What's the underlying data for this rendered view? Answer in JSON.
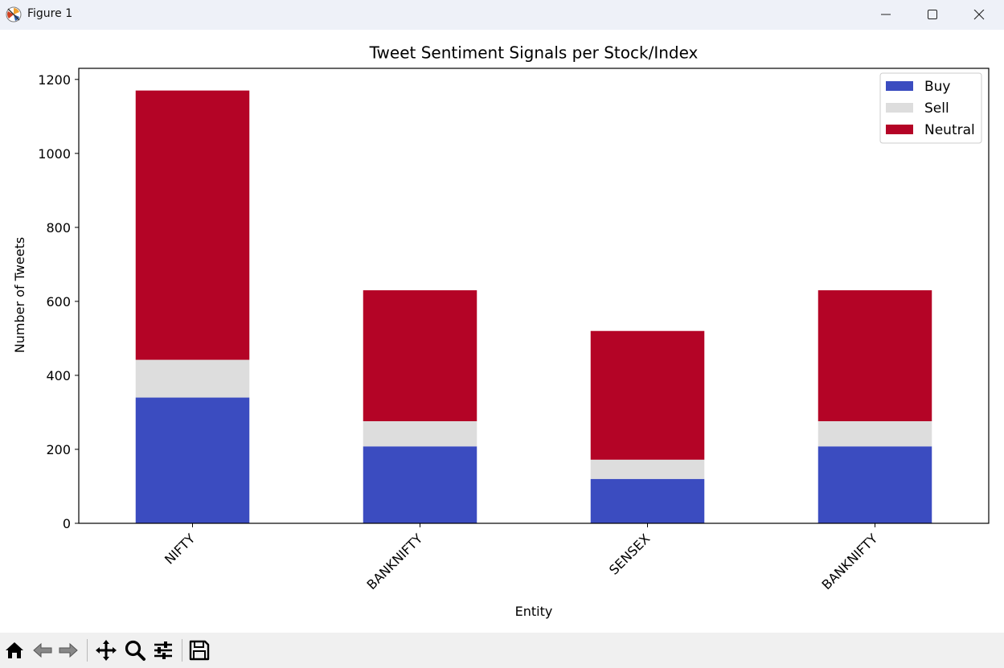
{
  "window": {
    "title": "Figure 1"
  },
  "toolbar": {
    "buttons": [
      {
        "name": "home-button",
        "icon": "home-icon"
      },
      {
        "name": "back-button",
        "icon": "arrow-left-icon"
      },
      {
        "name": "forward-button",
        "icon": "arrow-right-icon"
      },
      {
        "name": "pan-button",
        "icon": "move-icon"
      },
      {
        "name": "zoom-button",
        "icon": "magnifier-icon"
      },
      {
        "name": "configure-subplots-button",
        "icon": "sliders-icon"
      },
      {
        "name": "save-button",
        "icon": "floppy-disk-icon"
      }
    ]
  },
  "chart_data": {
    "type": "bar",
    "stacked": true,
    "title": "Tweet Sentiment Signals per Stock/Index",
    "xlabel": "Entity",
    "ylabel": "Number of Tweets",
    "categories": [
      "NIFTY",
      "BANKNIFTY",
      "SENSEX",
      "BANKNIFTY"
    ],
    "series": [
      {
        "name": "Buy",
        "values": [
          340,
          208,
          120,
          208
        ],
        "color": "#3b4cc0"
      },
      {
        "name": "Sell",
        "values": [
          102,
          68,
          52,
          68
        ],
        "color": "#dddddd"
      },
      {
        "name": "Neutral",
        "values": [
          728,
          354,
          348,
          354
        ],
        "color": "#b40426"
      }
    ],
    "ylim": [
      0,
      1230
    ],
    "yticks": [
      0,
      200,
      400,
      600,
      800,
      1000,
      1200
    ],
    "grid": false,
    "legend_position": "top-right"
  }
}
